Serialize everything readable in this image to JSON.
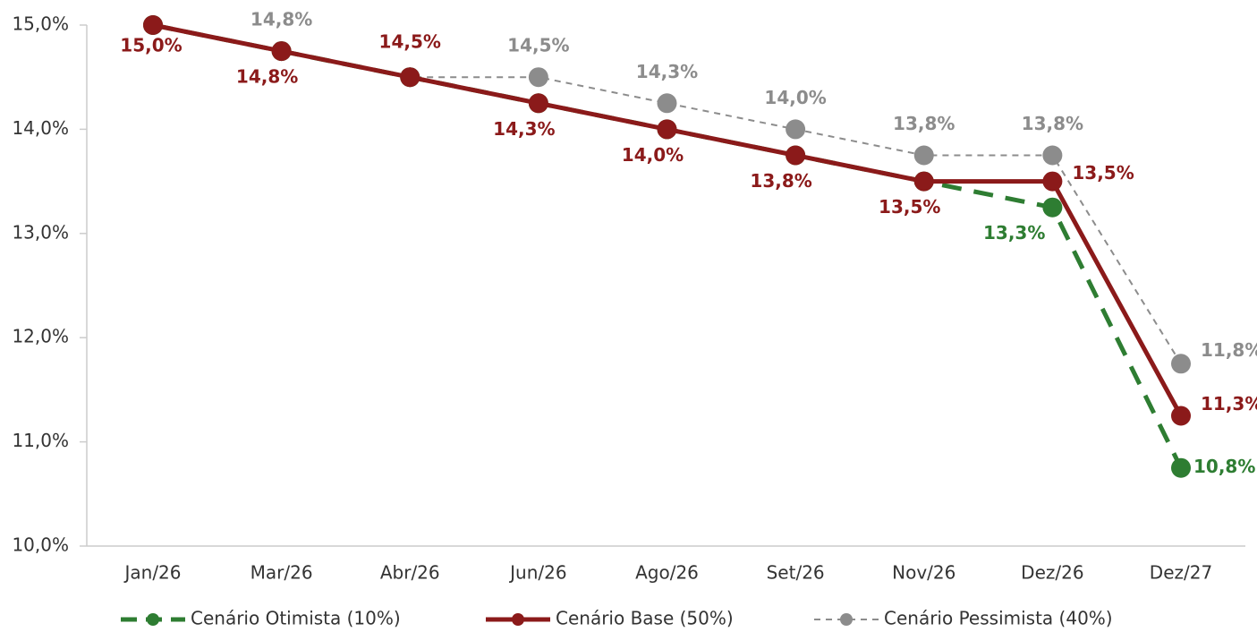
{
  "chart_data": {
    "type": "line",
    "categories": [
      "Jan/26",
      "Mar/26",
      "Abr/26",
      "Jun/26",
      "Ago/26",
      "Set/26",
      "Nov/26",
      "Dez/26",
      "Dez/27"
    ],
    "ylim": [
      10,
      15
    ],
    "yticks": [
      {
        "value": 10,
        "label": "10,0%"
      },
      {
        "value": 11,
        "label": "11,0%"
      },
      {
        "value": 12,
        "label": "12,0%"
      },
      {
        "value": 13,
        "label": "13,0%"
      },
      {
        "value": 14,
        "label": "14,0%"
      },
      {
        "value": 15,
        "label": "15,0%"
      }
    ],
    "grid": false,
    "legend": "bottom",
    "series": [
      {
        "name": "Cenário Otimista (10%)",
        "color": "#2e7d32",
        "dash": "dashed",
        "values": [
          15,
          14.75,
          14.5,
          14.25,
          14,
          13.75,
          13.5,
          13.25,
          10.75
        ],
        "value_labels": [
          null,
          null,
          null,
          null,
          null,
          null,
          null,
          "13,3%",
          "10,8%"
        ]
      },
      {
        "name": "Cenário Base (50%)",
        "color": "#8b1a1a",
        "dash": "solid",
        "values": [
          15,
          14.75,
          14.5,
          14.25,
          14,
          13.75,
          13.5,
          13.5,
          11.25
        ],
        "value_labels": [
          "15,0%",
          "14,8%",
          "14,5%",
          "14,3%",
          "14,0%",
          "13,8%",
          "13,5%",
          "13,5%",
          "11,3%"
        ]
      },
      {
        "name": "Cenário Pessimista (40%)",
        "color": "#8c8c8c",
        "dash": "dotted",
        "values": [
          15,
          14.75,
          14.5,
          14.5,
          14.25,
          14,
          13.75,
          13.75,
          11.75
        ],
        "value_labels": [
          null,
          "14,8%",
          null,
          "14,5%",
          "14,3%",
          "14,0%",
          "13,8%",
          "13,8%",
          "11,8%"
        ]
      }
    ]
  }
}
